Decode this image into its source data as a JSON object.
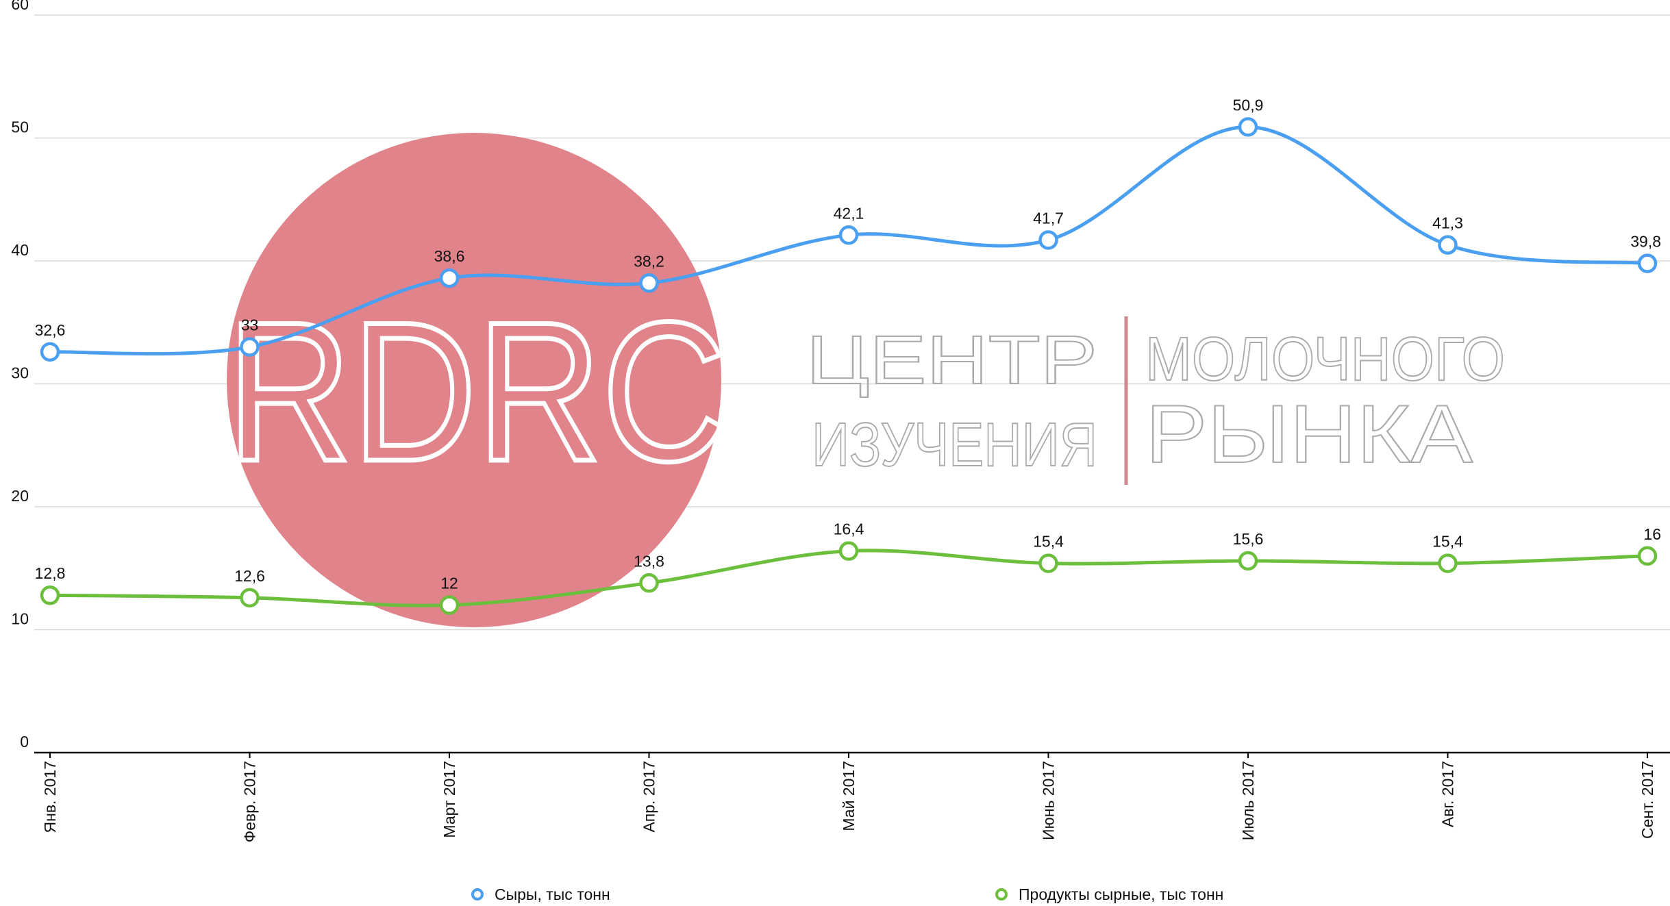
{
  "chart_data": {
    "type": "line",
    "categories": [
      "Янв. 2017",
      "Февр. 2017",
      "Март 2017",
      "Апр. 2017",
      "Май 2017",
      "Июнь 2017",
      "Июль 2017",
      "Авг. 2017",
      "Сент. 2017"
    ],
    "series": [
      {
        "name": "Сыры, тыс тонн",
        "color": "#4a9ff0",
        "values": [
          32.6,
          33,
          38.6,
          38.2,
          42.1,
          41.7,
          50.9,
          41.3,
          39.8
        ],
        "value_labels": [
          "32,6",
          "33",
          "38,6",
          "38,2",
          "42,1",
          "41,7",
          "50,9",
          "41,3",
          "39,8"
        ]
      },
      {
        "name": "Продукты сырные, тыс тонн",
        "color": "#6cbf3c",
        "values": [
          12.8,
          12.6,
          12,
          13.8,
          16.4,
          15.4,
          15.6,
          15.4,
          16
        ],
        "value_labels": [
          "12,8",
          "12,6",
          "12",
          "13,8",
          "16,4",
          "15,4",
          "15,6",
          "15,4",
          "16"
        ]
      }
    ],
    "ylim": [
      0,
      60
    ],
    "yticks": [
      0,
      10,
      20,
      30,
      40,
      50,
      60
    ],
    "grid": true,
    "legend": "bottom",
    "watermark": {
      "logo": "RDRC",
      "line1": "ЦЕНТР",
      "line2": "ИЗУЧЕНИЯ",
      "line3": "МОЛОЧНОГО",
      "line4": "РЫНКА"
    }
  }
}
